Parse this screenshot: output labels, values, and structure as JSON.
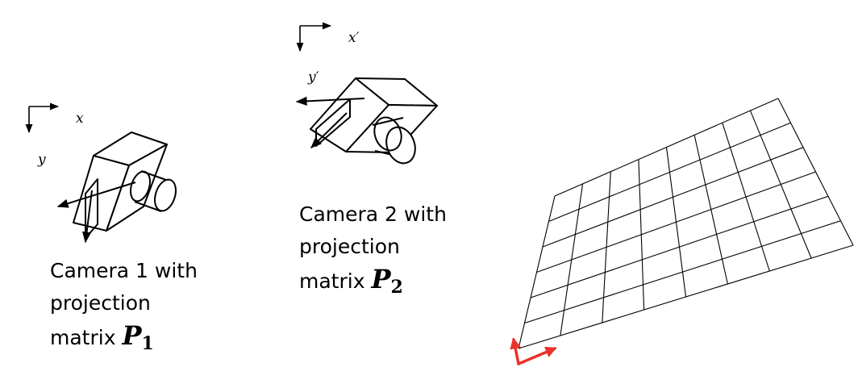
{
  "camera1": {
    "axis_x": "x",
    "axis_y": "y",
    "caption": {
      "line1": "Camera 1 with",
      "line2": "projection",
      "line3_prefix": "matrix ",
      "matrix_symbol": "P",
      "matrix_index": "1"
    }
  },
  "camera2": {
    "axis_x": "x′",
    "axis_y": "y′",
    "caption": {
      "line1": "Camera 2 with",
      "line2": "projection",
      "line3_prefix": "matrix ",
      "matrix_symbol": "P",
      "matrix_index": "2"
    }
  },
  "plane": {
    "grid_columns": 8,
    "grid_rows": 6
  },
  "colors": {
    "ink": "#000000",
    "plane_axes": "#e8322a"
  }
}
